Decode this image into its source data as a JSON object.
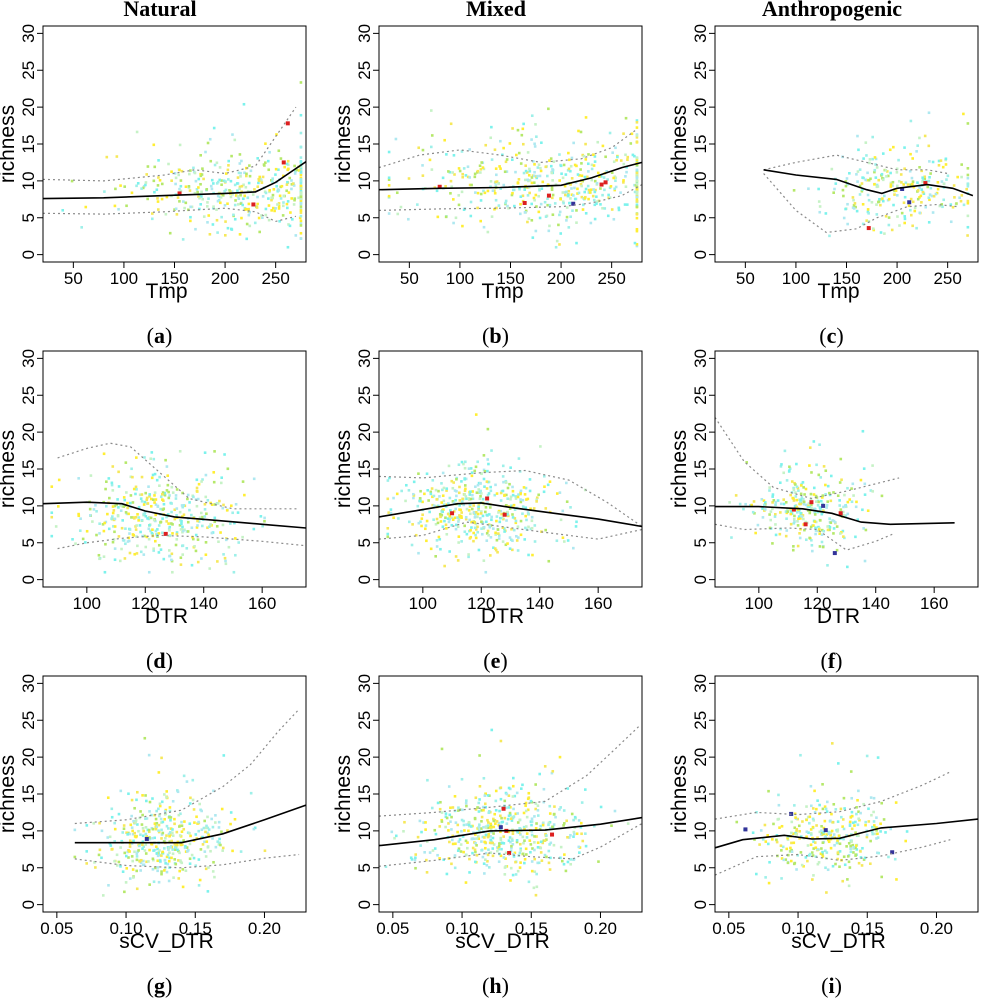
{
  "column_titles": [
    "Natural",
    "Mixed",
    "Anthropogenic"
  ],
  "chart_data": [
    {
      "type": "scatter",
      "panel_label": "a",
      "title": "",
      "xlabel": "Tmp",
      "ylabel": "richness",
      "xlim": [
        20,
        280
      ],
      "ylim": [
        -1,
        31
      ],
      "xticks": [
        50,
        100,
        150,
        200,
        250
      ],
      "yticks": [
        0,
        5,
        10,
        15,
        20,
        25,
        30
      ],
      "fit": [
        [
          20,
          7.6
        ],
        [
          80,
          7.7
        ],
        [
          140,
          8.0
        ],
        [
          200,
          8.3
        ],
        [
          230,
          8.5
        ],
        [
          250,
          9.8
        ],
        [
          265,
          11.2
        ],
        [
          280,
          12.6
        ]
      ],
      "ci_upper": [
        [
          20,
          10.2
        ],
        [
          80,
          10.0
        ],
        [
          140,
          10.8
        ],
        [
          170,
          11.5
        ],
        [
          200,
          11.0
        ],
        [
          230,
          12.0
        ],
        [
          255,
          17.0
        ],
        [
          270,
          20.0
        ]
      ],
      "ci_lower": [
        [
          20,
          5.6
        ],
        [
          80,
          5.5
        ],
        [
          140,
          5.8
        ],
        [
          200,
          6.3
        ],
        [
          230,
          5.8
        ],
        [
          250,
          4.5
        ],
        [
          270,
          5.2
        ]
      ],
      "highlight": [
        {
          "x": 155,
          "y": 8.3,
          "color": "#dd1f1f"
        },
        {
          "x": 228,
          "y": 6.8,
          "color": "#dd1f1f"
        },
        {
          "x": 262,
          "y": 17.8,
          "color": "#dd1f1f"
        },
        {
          "x": 258,
          "y": 12.5,
          "color": "#dd1f1f"
        }
      ],
      "cloud": {
        "x_range": [
          30,
          275
        ],
        "center": 220,
        "spread": 60,
        "y_mean": 8.5,
        "y_sd": 2.8,
        "n": 420,
        "seed": 11
      }
    },
    {
      "type": "scatter",
      "panel_label": "b",
      "title": "",
      "xlabel": "Tmp",
      "ylabel": "richness",
      "xlim": [
        20,
        280
      ],
      "ylim": [
        -1,
        31
      ],
      "xticks": [
        50,
        100,
        150,
        200,
        250
      ],
      "yticks": [
        0,
        5,
        10,
        15,
        20,
        25,
        30
      ],
      "fit": [
        [
          20,
          8.8
        ],
        [
          80,
          9.0
        ],
        [
          140,
          9.1
        ],
        [
          200,
          9.4
        ],
        [
          230,
          10.4
        ],
        [
          260,
          11.8
        ],
        [
          280,
          12.5
        ]
      ],
      "ci_upper": [
        [
          20,
          11.8
        ],
        [
          60,
          13.5
        ],
        [
          100,
          14.2
        ],
        [
          140,
          13.5
        ],
        [
          180,
          12.5
        ],
        [
          220,
          13.0
        ],
        [
          250,
          14.5
        ],
        [
          275,
          17.0
        ]
      ],
      "ci_lower": [
        [
          20,
          6.0
        ],
        [
          80,
          6.2
        ],
        [
          140,
          6.3
        ],
        [
          200,
          6.5
        ],
        [
          230,
          7.0
        ],
        [
          260,
          8.0
        ],
        [
          280,
          9.5
        ]
      ],
      "highlight": [
        {
          "x": 80,
          "y": 9.2,
          "color": "#dd1f1f"
        },
        {
          "x": 164,
          "y": 7.0,
          "color": "#dd1f1f"
        },
        {
          "x": 212,
          "y": 6.9,
          "color": "#333399"
        },
        {
          "x": 240,
          "y": 9.5,
          "color": "#dd1f1f"
        },
        {
          "x": 244,
          "y": 9.8,
          "color": "#dd1f1f"
        },
        {
          "x": 188,
          "y": 8.0,
          "color": "#dd1f1f"
        }
      ],
      "cloud": {
        "x_range": [
          30,
          275
        ],
        "center": 195,
        "spread": 70,
        "y_mean": 9.5,
        "y_sd": 3.0,
        "n": 520,
        "seed": 23
      }
    },
    {
      "type": "scatter",
      "panel_label": "c",
      "title": "",
      "xlabel": "Tmp",
      "ylabel": "richness",
      "xlim": [
        20,
        280
      ],
      "ylim": [
        -1,
        31
      ],
      "xticks": [
        50,
        100,
        150,
        200,
        250
      ],
      "yticks": [
        0,
        5,
        10,
        15,
        20,
        25,
        30
      ],
      "fit": [
        [
          68,
          11.5
        ],
        [
          100,
          10.8
        ],
        [
          140,
          10.2
        ],
        [
          170,
          8.8
        ],
        [
          185,
          8.3
        ],
        [
          200,
          9.0
        ],
        [
          230,
          9.5
        ],
        [
          255,
          9.0
        ],
        [
          275,
          8.0
        ]
      ],
      "ci_upper": [
        [
          68,
          11.5
        ],
        [
          100,
          12.5
        ],
        [
          140,
          13.5
        ],
        [
          170,
          12.5
        ],
        [
          200,
          11.5
        ],
        [
          230,
          11.5
        ],
        [
          250,
          11.0
        ]
      ],
      "ci_lower": [
        [
          68,
          11.0
        ],
        [
          100,
          6.0
        ],
        [
          130,
          3.0
        ],
        [
          160,
          3.5
        ],
        [
          180,
          5.0
        ],
        [
          210,
          6.5
        ],
        [
          240,
          6.8
        ],
        [
          260,
          6.5
        ]
      ],
      "highlight": [
        {
          "x": 172,
          "y": 3.6,
          "color": "#dd1f1f"
        },
        {
          "x": 205,
          "y": 8.9,
          "color": "#333399"
        },
        {
          "x": 212,
          "y": 7.1,
          "color": "#333399"
        },
        {
          "x": 228,
          "y": 9.7,
          "color": "#dd1f1f"
        }
      ],
      "cloud": {
        "x_range": [
          70,
          270
        ],
        "center": 205,
        "spread": 40,
        "y_mean": 8.5,
        "y_sd": 2.5,
        "n": 260,
        "seed": 37
      }
    },
    {
      "type": "scatter",
      "panel_label": "d",
      "title": "",
      "xlabel": "DTR",
      "ylabel": "richness",
      "xlim": [
        85,
        175
      ],
      "ylim": [
        -1,
        31
      ],
      "xticks": [
        100,
        120,
        140,
        160
      ],
      "yticks": [
        0,
        5,
        10,
        15,
        20,
        25,
        30
      ],
      "fit": [
        [
          85,
          10.3
        ],
        [
          100,
          10.5
        ],
        [
          112,
          10.3
        ],
        [
          120,
          9.3
        ],
        [
          130,
          8.5
        ],
        [
          145,
          8.0
        ],
        [
          160,
          7.5
        ],
        [
          175,
          7.0
        ]
      ],
      "ci_upper": [
        [
          90,
          16.5
        ],
        [
          100,
          17.8
        ],
        [
          108,
          18.5
        ],
        [
          115,
          18.0
        ],
        [
          125,
          14.5
        ],
        [
          135,
          11.0
        ],
        [
          150,
          9.6
        ],
        [
          172,
          9.6
        ]
      ],
      "ci_lower": [
        [
          90,
          4.2
        ],
        [
          100,
          5.0
        ],
        [
          112,
          5.6
        ],
        [
          125,
          6.0
        ],
        [
          140,
          5.8
        ],
        [
          160,
          5.2
        ],
        [
          175,
          4.6
        ]
      ],
      "highlight": [
        {
          "x": 127,
          "y": 6.2,
          "color": "#dd1f1f"
        }
      ],
      "cloud": {
        "x_range": [
          88,
          172
        ],
        "center": 125,
        "spread": 15,
        "y_mean": 8.5,
        "y_sd": 3.0,
        "n": 420,
        "seed": 41
      }
    },
    {
      "type": "scatter",
      "panel_label": "e",
      "title": "",
      "xlabel": "DTR",
      "ylabel": "richness",
      "xlim": [
        85,
        175
      ],
      "ylim": [
        -1,
        31
      ],
      "xticks": [
        100,
        120,
        140,
        160
      ],
      "yticks": [
        0,
        5,
        10,
        15,
        20,
        25,
        30
      ],
      "fit": [
        [
          85,
          8.5
        ],
        [
          100,
          9.5
        ],
        [
          112,
          10.3
        ],
        [
          120,
          10.4
        ],
        [
          130,
          9.8
        ],
        [
          145,
          9.0
        ],
        [
          160,
          8.2
        ],
        [
          175,
          7.2
        ]
      ],
      "ci_upper": [
        [
          85,
          14.0
        ],
        [
          100,
          13.8
        ],
        [
          120,
          14.5
        ],
        [
          135,
          14.8
        ],
        [
          150,
          13.5
        ],
        [
          163,
          10.5
        ],
        [
          175,
          7.2
        ]
      ],
      "ci_lower": [
        [
          85,
          5.5
        ],
        [
          100,
          6.0
        ],
        [
          115,
          7.8
        ],
        [
          125,
          7.3
        ],
        [
          140,
          6.5
        ],
        [
          160,
          5.5
        ],
        [
          175,
          6.8
        ]
      ],
      "highlight": [
        {
          "x": 110,
          "y": 9.0,
          "color": "#dd1f1f"
        },
        {
          "x": 122,
          "y": 11.0,
          "color": "#dd1f1f"
        },
        {
          "x": 128,
          "y": 8.8,
          "color": "#dd1f1f"
        }
      ],
      "cloud": {
        "x_range": [
          88,
          172
        ],
        "center": 120,
        "spread": 13,
        "y_mean": 9.5,
        "y_sd": 3.0,
        "n": 480,
        "seed": 53
      }
    },
    {
      "type": "scatter",
      "panel_label": "f",
      "title": "",
      "xlabel": "DTR",
      "ylabel": "richness",
      "xlim": [
        85,
        175
      ],
      "ylim": [
        -1,
        31
      ],
      "xticks": [
        100,
        120,
        140,
        160
      ],
      "yticks": [
        0,
        5,
        10,
        15,
        20,
        25,
        30
      ],
      "fit": [
        [
          85,
          9.9
        ],
        [
          100,
          9.9
        ],
        [
          115,
          9.6
        ],
        [
          125,
          9.0
        ],
        [
          135,
          7.8
        ],
        [
          145,
          7.5
        ],
        [
          167,
          7.7
        ]
      ],
      "ci_upper": [
        [
          85,
          22.0
        ],
        [
          95,
          16.0
        ],
        [
          105,
          12.5
        ],
        [
          118,
          11.0
        ],
        [
          130,
          12.0
        ],
        [
          148,
          13.8
        ]
      ],
      "ci_lower": [
        [
          85,
          7.5
        ],
        [
          95,
          6.8
        ],
        [
          110,
          7.0
        ],
        [
          120,
          6.8
        ],
        [
          130,
          4.0
        ],
        [
          140,
          5.2
        ],
        [
          146,
          6.2
        ]
      ],
      "highlight": [
        {
          "x": 112,
          "y": 9.5,
          "color": "#dd1f1f"
        },
        {
          "x": 116,
          "y": 7.5,
          "color": "#dd1f1f"
        },
        {
          "x": 118,
          "y": 10.5,
          "color": "#dd1f1f"
        },
        {
          "x": 122,
          "y": 10.0,
          "color": "#333399"
        },
        {
          "x": 126,
          "y": 3.6,
          "color": "#333399"
        },
        {
          "x": 128,
          "y": 9.0,
          "color": "#dd1f1f"
        }
      ],
      "cloud": {
        "x_range": [
          90,
          150
        ],
        "center": 118,
        "spread": 9,
        "y_mean": 9.0,
        "y_sd": 2.5,
        "n": 300,
        "seed": 67
      }
    },
    {
      "type": "scatter",
      "panel_label": "g",
      "title": "",
      "xlabel": "sCV_DTR",
      "ylabel": "richness",
      "xlim": [
        0.04,
        0.23
      ],
      "ylim": [
        -1,
        31
      ],
      "xticks": [
        0.05,
        0.1,
        0.15,
        0.2
      ],
      "yticks": [
        0,
        5,
        10,
        15,
        20,
        25,
        30
      ],
      "fit": [
        [
          0.063,
          8.4
        ],
        [
          0.1,
          8.4
        ],
        [
          0.14,
          8.4
        ],
        [
          0.17,
          9.6
        ],
        [
          0.2,
          11.5
        ],
        [
          0.23,
          13.5
        ]
      ],
      "ci_upper": [
        [
          0.063,
          11.0
        ],
        [
          0.1,
          11.5
        ],
        [
          0.14,
          12.8
        ],
        [
          0.17,
          16.0
        ],
        [
          0.19,
          19.0
        ],
        [
          0.21,
          23.5
        ],
        [
          0.225,
          26.5
        ]
      ],
      "ci_lower": [
        [
          0.063,
          6.2
        ],
        [
          0.1,
          5.3
        ],
        [
          0.14,
          5.0
        ],
        [
          0.17,
          5.4
        ],
        [
          0.2,
          6.3
        ],
        [
          0.225,
          6.8
        ]
      ],
      "highlight": [
        {
          "x": 0.115,
          "y": 8.9,
          "color": "#333399"
        }
      ],
      "cloud": {
        "x_range": [
          0.063,
          0.215
        ],
        "center": 0.125,
        "spread": 0.025,
        "y_mean": 8.5,
        "y_sd": 3.0,
        "n": 420,
        "seed": 71
      }
    },
    {
      "type": "scatter",
      "panel_label": "h",
      "title": "",
      "xlabel": "sCV_DTR",
      "ylabel": "richness",
      "xlim": [
        0.04,
        0.23
      ],
      "ylim": [
        -1,
        31
      ],
      "xticks": [
        0.05,
        0.1,
        0.15,
        0.2
      ],
      "yticks": [
        0,
        5,
        10,
        15,
        20,
        25,
        30
      ],
      "fit": [
        [
          0.04,
          8.0
        ],
        [
          0.08,
          8.8
        ],
        [
          0.12,
          10.0
        ],
        [
          0.16,
          10.1
        ],
        [
          0.2,
          10.9
        ],
        [
          0.23,
          11.8
        ]
      ],
      "ci_upper": [
        [
          0.04,
          12.0
        ],
        [
          0.08,
          12.5
        ],
        [
          0.12,
          13.2
        ],
        [
          0.16,
          14.0
        ],
        [
          0.19,
          17.5
        ],
        [
          0.21,
          21.0
        ],
        [
          0.228,
          24.2
        ]
      ],
      "ci_lower": [
        [
          0.04,
          5.2
        ],
        [
          0.08,
          6.0
        ],
        [
          0.12,
          7.0
        ],
        [
          0.15,
          6.5
        ],
        [
          0.18,
          6.2
        ],
        [
          0.2,
          7.8
        ],
        [
          0.23,
          11.0
        ]
      ],
      "highlight": [
        {
          "x": 0.13,
          "y": 13.0,
          "color": "#dd1f1f"
        },
        {
          "x": 0.132,
          "y": 10.0,
          "color": "#dd1f1f"
        },
        {
          "x": 0.134,
          "y": 7.0,
          "color": "#dd1f1f"
        },
        {
          "x": 0.128,
          "y": 10.5,
          "color": "#333399"
        },
        {
          "x": 0.165,
          "y": 9.5,
          "color": "#dd1f1f"
        }
      ],
      "cloud": {
        "x_range": [
          0.045,
          0.22
        ],
        "center": 0.13,
        "spread": 0.03,
        "y_mean": 9.8,
        "y_sd": 3.0,
        "n": 500,
        "seed": 83
      }
    },
    {
      "type": "scatter",
      "panel_label": "i",
      "title": "",
      "xlabel": "sCV_DTR",
      "ylabel": "richness",
      "xlim": [
        0.04,
        0.23
      ],
      "ylim": [
        -1,
        31
      ],
      "xticks": [
        0.05,
        0.1,
        0.15,
        0.2
      ],
      "yticks": [
        0,
        5,
        10,
        15,
        20,
        25,
        30
      ],
      "fit": [
        [
          0.04,
          7.7
        ],
        [
          0.06,
          8.8
        ],
        [
          0.09,
          9.4
        ],
        [
          0.11,
          8.9
        ],
        [
          0.13,
          9.0
        ],
        [
          0.16,
          10.4
        ],
        [
          0.2,
          11.0
        ],
        [
          0.23,
          11.6
        ]
      ],
      "ci_upper": [
        [
          0.04,
          11.6
        ],
        [
          0.07,
          12.5
        ],
        [
          0.1,
          12.2
        ],
        [
          0.13,
          12.6
        ],
        [
          0.16,
          14.0
        ],
        [
          0.19,
          16.2
        ],
        [
          0.21,
          18.0
        ]
      ],
      "ci_lower": [
        [
          0.04,
          4.0
        ],
        [
          0.07,
          6.5
        ],
        [
          0.1,
          6.8
        ],
        [
          0.13,
          6.0
        ],
        [
          0.16,
          6.6
        ],
        [
          0.19,
          7.8
        ],
        [
          0.21,
          8.8
        ]
      ],
      "highlight": [
        {
          "x": 0.062,
          "y": 10.2,
          "color": "#333399"
        },
        {
          "x": 0.095,
          "y": 12.3,
          "color": "#333399"
        },
        {
          "x": 0.12,
          "y": 10.1,
          "color": "#333399"
        },
        {
          "x": 0.168,
          "y": 7.1,
          "color": "#333399"
        }
      ],
      "cloud": {
        "x_range": [
          0.045,
          0.21
        ],
        "center": 0.12,
        "spread": 0.025,
        "y_mean": 9.2,
        "y_sd": 2.6,
        "n": 330,
        "seed": 97
      }
    }
  ]
}
